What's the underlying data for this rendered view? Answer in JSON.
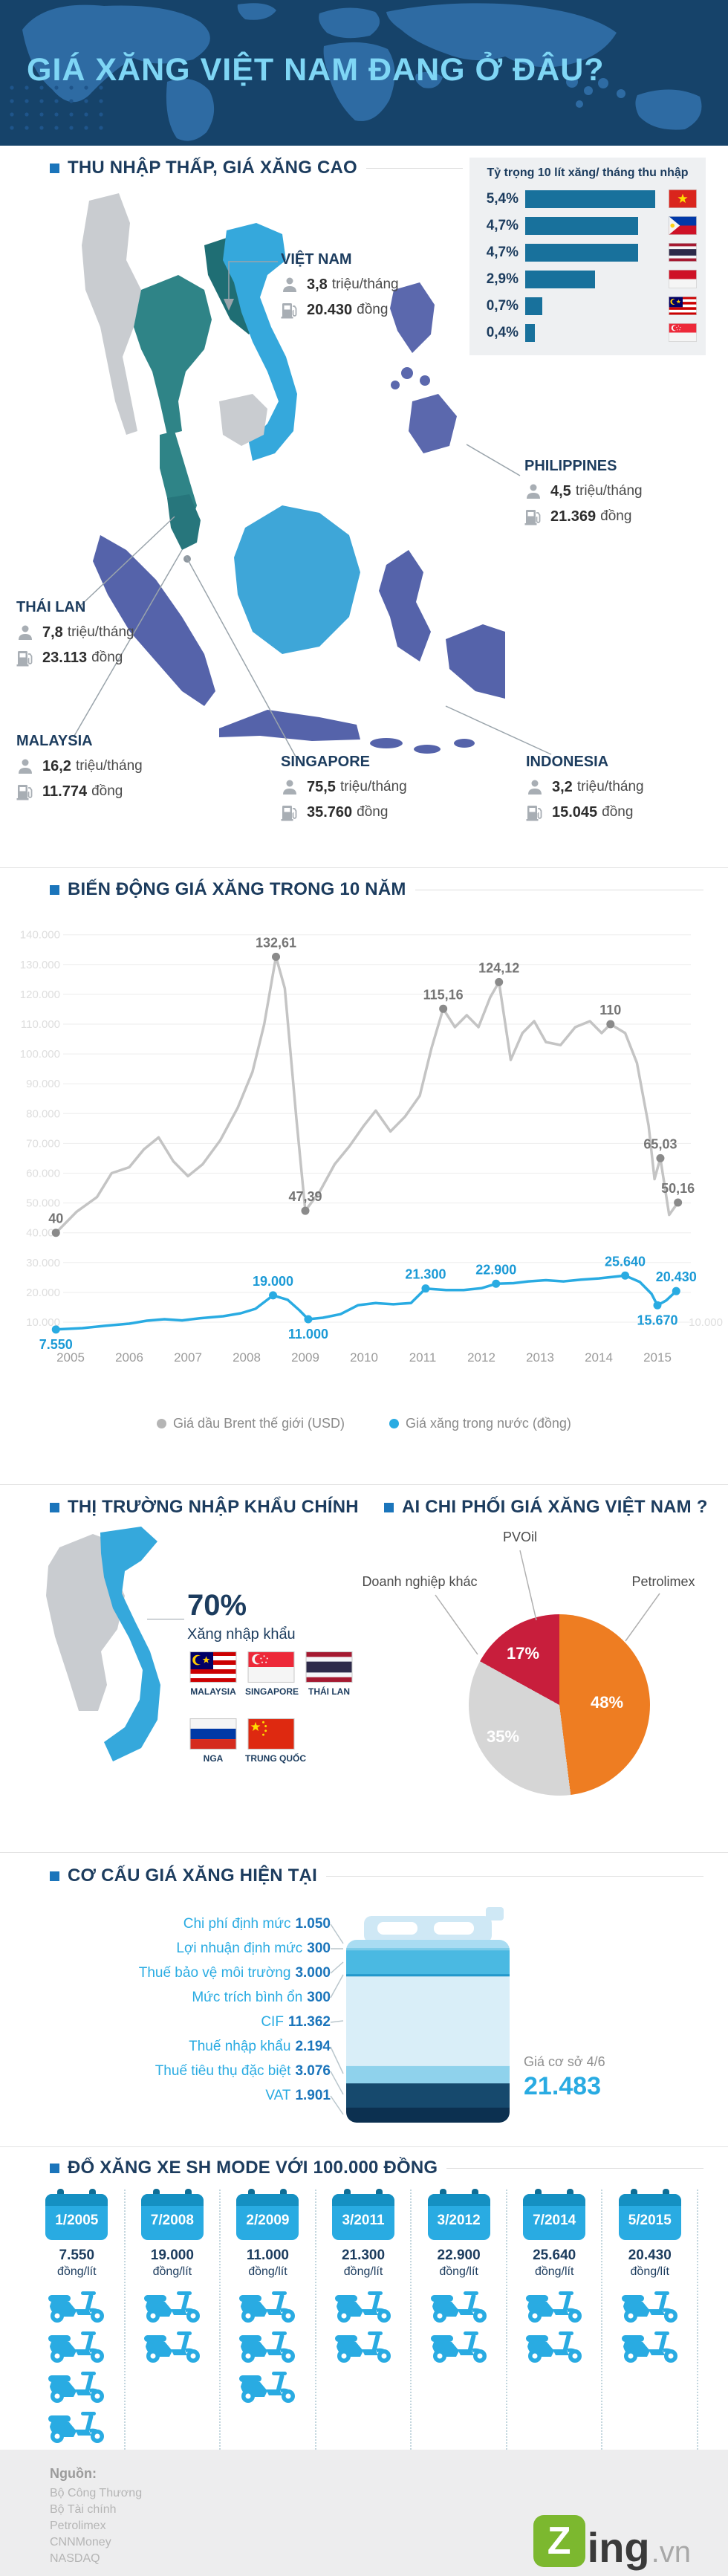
{
  "header": {
    "title": "GIÁ XĂNG VIỆT NAM ĐANG Ở ĐÂU?"
  },
  "sections": {
    "income": {
      "heading": "THU NHẬP THẤP, GIÁ XĂNG CAO",
      "countries": [
        {
          "name": "VIỆT NAM",
          "income_value": "3,8",
          "income_unit": "triệu/tháng",
          "price_value": "20.430",
          "price_unit": "đồng"
        },
        {
          "name": "PHILIPPINES",
          "income_value": "4,5",
          "income_unit": "triệu/tháng",
          "price_value": "21.369",
          "price_unit": "đồng"
        },
        {
          "name": "THÁI LAN",
          "income_value": "7,8",
          "income_unit": "triệu/tháng",
          "price_value": "23.113",
          "price_unit": "đồng"
        },
        {
          "name": "MALAYSIA",
          "income_value": "16,2",
          "income_unit": "triệu/tháng",
          "price_value": "11.774",
          "price_unit": "đồng"
        },
        {
          "name": "SINGAPORE",
          "income_value": "75,5",
          "income_unit": "triệu/tháng",
          "price_value": "35.760",
          "price_unit": "đồng"
        },
        {
          "name": "INDONESIA",
          "income_value": "3,2",
          "income_unit": "triệu/tháng",
          "price_value": "15.045",
          "price_unit": "đồng"
        }
      ]
    },
    "trend": {
      "heading": "BIẾN ĐỘNG GIÁ XĂNG TRONG 10 NĂM"
    },
    "imports": {
      "heading": "THỊ TRƯỜNG NHẬP KHẨU CHÍNH",
      "percent": "70%",
      "percent_label": "Xăng nhập khẩu",
      "flags": [
        {
          "name": "MALAYSIA",
          "flag": "malaysia"
        },
        {
          "name": "SINGAPORE",
          "flag": "singapore"
        },
        {
          "name": "THÁI LAN",
          "flag": "thailand"
        },
        {
          "name": "NGA",
          "flag": "russia"
        },
        {
          "name": "TRUNG QUỐC",
          "flag": "china"
        }
      ]
    },
    "control": {
      "heading": "AI CHI PHỐI GIÁ XĂNG VIỆT NAM ?"
    },
    "structure": {
      "heading": "CƠ CẤU GIÁ XĂNG HIỆN TẠI",
      "components": [
        {
          "label": "Chi phí định mức",
          "value": "1.050"
        },
        {
          "label": "Lợi nhuận định mức",
          "value": "300"
        },
        {
          "label": "Thuế bảo vệ môi trường",
          "value": "3.000"
        },
        {
          "label": "Mức trích bình ổn",
          "value": "300"
        },
        {
          "label": "CIF",
          "value": "11.362"
        },
        {
          "label": "Thuế nhập khẩu",
          "value": "2.194"
        },
        {
          "label": "Thuế tiêu thụ đặc biệt",
          "value": "3.076"
        },
        {
          "label": "VAT",
          "value": "1.901"
        }
      ],
      "band_colors": [
        "#a9dcf2",
        "#7bcbe8",
        "#4ab9e2",
        "#2398cb",
        "#d9eef8",
        "#8fd2ec",
        "#16496d",
        "#0c3050"
      ],
      "base_price_label": "Giá cơ sở 4/6",
      "base_price": "21.483"
    },
    "refuel": {
      "heading": "ĐỔ XĂNG XE SH MODE VỚI 100.000 ĐỒNG",
      "entries": [
        {
          "date": "1/2005",
          "price": "7.550",
          "unit": "đồng/lít",
          "scooters": 4
        },
        {
          "date": "7/2008",
          "price": "19.000",
          "unit": "đồng/lít",
          "scooters": 2
        },
        {
          "date": "2/2009",
          "price": "11.000",
          "unit": "đồng/lít",
          "scooters": 3
        },
        {
          "date": "3/2011",
          "price": "21.300",
          "unit": "đồng/lít",
          "scooters": 2
        },
        {
          "date": "3/2012",
          "price": "22.900",
          "unit": "đồng/lít",
          "scooters": 2
        },
        {
          "date": "7/2014",
          "price": "25.640",
          "unit": "đồng/lít",
          "scooters": 2
        },
        {
          "date": "5/2015",
          "price": "20.430",
          "unit": "đồng/lít",
          "scooters": 2
        }
      ]
    }
  },
  "chart_data": [
    {
      "type": "bar",
      "title": "Tỷ trọng 10 lít xăng/ tháng thu nhập",
      "orientation": "horizontal",
      "categories": [
        "Việt Nam",
        "Philippines",
        "Thái Lan",
        "Indonesia",
        "Malaysia",
        "Singapore"
      ],
      "values": [
        5.4,
        4.7,
        4.7,
        2.9,
        0.7,
        0.4
      ],
      "labels": [
        "5,4%",
        "4,7%",
        "4,7%",
        "2,9%",
        "0,7%",
        "0,4%"
      ],
      "flags": [
        "vietnam",
        "philippines",
        "thailand",
        "indonesia",
        "malaysia",
        "singapore"
      ],
      "bar_color": "#18719c",
      "xlim": [
        0,
        5.4
      ]
    },
    {
      "type": "line",
      "title": "BIẾN ĐỘNG GIÁ XĂNG TRONG 10 NĂM",
      "x_ticks": [
        2005,
        2006,
        2007,
        2008,
        2009,
        2010,
        2011,
        2012,
        2013,
        2014,
        2015
      ],
      "y_gridlines": [
        10000,
        20000,
        30000,
        40000,
        50000,
        60000,
        70000,
        80000,
        90000,
        100000,
        110000,
        120000,
        130000,
        140000
      ],
      "y_gridline_labels": [
        "10.000",
        "20.000",
        "30.000",
        "40.000",
        "50.000",
        "60.000",
        "70.000",
        "80.000",
        "90.000",
        "100.000",
        "110.000",
        "120.000",
        "130.000",
        "140.000"
      ],
      "ylim": [
        0,
        145000
      ],
      "grid": true,
      "legend_position": "bottom",
      "series": [
        {
          "name": "Giá dầu Brent thế giới (USD)",
          "color": "#c4c4c4",
          "dot_color": "#8a8a8a",
          "label_color": "#757575",
          "unit": "USD",
          "plot_scale": 1000,
          "points": [
            [
              2004.75,
              40
            ],
            [
              2005.1,
              47
            ],
            [
              2005.45,
              52
            ],
            [
              2005.7,
              60
            ],
            [
              2006,
              62
            ],
            [
              2006.25,
              68
            ],
            [
              2006.5,
              72
            ],
            [
              2006.75,
              64
            ],
            [
              2007,
              59
            ],
            [
              2007.25,
              63
            ],
            [
              2007.55,
              71
            ],
            [
              2007.85,
              82
            ],
            [
              2008.1,
              94
            ],
            [
              2008.3,
              110
            ],
            [
              2008.5,
              132.61
            ],
            [
              2008.65,
              122
            ],
            [
              2008.85,
              78
            ],
            [
              2009,
              47.39
            ],
            [
              2009.25,
              54
            ],
            [
              2009.5,
              63
            ],
            [
              2009.75,
              69
            ],
            [
              2010,
              76
            ],
            [
              2010.2,
              81
            ],
            [
              2010.45,
              74
            ],
            [
              2010.7,
              79
            ],
            [
              2010.95,
              86
            ],
            [
              2011.15,
              102
            ],
            [
              2011.35,
              115.16
            ],
            [
              2011.55,
              109
            ],
            [
              2011.75,
              113
            ],
            [
              2011.95,
              109
            ],
            [
              2012.15,
              119
            ],
            [
              2012.3,
              124.12
            ],
            [
              2012.5,
              98
            ],
            [
              2012.7,
              107
            ],
            [
              2012.9,
              111
            ],
            [
              2013.1,
              104
            ],
            [
              2013.35,
              103
            ],
            [
              2013.6,
              109
            ],
            [
              2013.85,
              111
            ],
            [
              2014.05,
              107
            ],
            [
              2014.2,
              110
            ],
            [
              2014.45,
              107
            ],
            [
              2014.65,
              97
            ],
            [
              2014.85,
              76
            ],
            [
              2014.95,
              58
            ],
            [
              2015.05,
              65.03
            ],
            [
              2015.2,
              46
            ],
            [
              2015.35,
              50.16
            ]
          ],
          "annotations": [
            {
              "x": 2004.75,
              "y": 40,
              "label": "40",
              "pos": "above"
            },
            {
              "x": 2008.5,
              "y": 132.61,
              "label": "132,61",
              "pos": "above"
            },
            {
              "x": 2009,
              "y": 47.39,
              "label": "47,39",
              "pos": "above"
            },
            {
              "x": 2011.35,
              "y": 115.16,
              "label": "115,16",
              "pos": "above"
            },
            {
              "x": 2012.3,
              "y": 124.12,
              "label": "124,12",
              "pos": "above"
            },
            {
              "x": 2014.2,
              "y": 110,
              "label": "110",
              "pos": "above"
            },
            {
              "x": 2015.05,
              "y": 65.03,
              "label": "65,03",
              "pos": "above"
            },
            {
              "x": 2015.35,
              "y": 50.16,
              "label": "50,16",
              "pos": "above"
            }
          ]
        },
        {
          "name": "Giá xăng trong nước (đồng)",
          "color": "#29abe2",
          "dot_color": "#29abe2",
          "label_color": "#1b9ad6",
          "unit": "đồng",
          "plot_scale": 1,
          "points": [
            [
              2004.75,
              7550
            ],
            [
              2005.2,
              8000
            ],
            [
              2005.6,
              8800
            ],
            [
              2006,
              9500
            ],
            [
              2006.3,
              10500
            ],
            [
              2006.6,
              11000
            ],
            [
              2006.9,
              10600
            ],
            [
              2007.2,
              11300
            ],
            [
              2007.6,
              12000
            ],
            [
              2007.9,
              13000
            ],
            [
              2008.15,
              14500
            ],
            [
              2008.45,
              19000
            ],
            [
              2008.7,
              17500
            ],
            [
              2008.9,
              14000
            ],
            [
              2009.05,
              11000
            ],
            [
              2009.3,
              11500
            ],
            [
              2009.6,
              12700
            ],
            [
              2009.9,
              15700
            ],
            [
              2010.2,
              16400
            ],
            [
              2010.5,
              16000
            ],
            [
              2010.8,
              16400
            ],
            [
              2011.05,
              21300
            ],
            [
              2011.4,
              20800
            ],
            [
              2011.7,
              20800
            ],
            [
              2012,
              21400
            ],
            [
              2012.25,
              22900
            ],
            [
              2012.55,
              23100
            ],
            [
              2012.8,
              23700
            ],
            [
              2013.1,
              24100
            ],
            [
              2013.4,
              23700
            ],
            [
              2013.7,
              24300
            ],
            [
              2014,
              24700
            ],
            [
              2014.45,
              25640
            ],
            [
              2014.7,
              23500
            ],
            [
              2014.9,
              19500
            ],
            [
              2015,
              15670
            ],
            [
              2015.15,
              17300
            ],
            [
              2015.32,
              20430
            ]
          ],
          "annotations": [
            {
              "x": 2004.75,
              "y": 7550,
              "label": "7.550",
              "pos": "below"
            },
            {
              "x": 2008.45,
              "y": 19000,
              "label": "19.000",
              "pos": "above"
            },
            {
              "x": 2009.05,
              "y": 11000,
              "label": "11.000",
              "pos": "below"
            },
            {
              "x": 2011.05,
              "y": 21300,
              "label": "21.300",
              "pos": "above"
            },
            {
              "x": 2012.25,
              "y": 22900,
              "label": "22.900",
              "pos": "above"
            },
            {
              "x": 2014.45,
              "y": 25640,
              "label": "25.640",
              "pos": "above"
            },
            {
              "x": 2015,
              "y": 15670,
              "label": "15.670",
              "pos": "below"
            },
            {
              "x": 2015.32,
              "y": 20430,
              "label": "20.430",
              "pos": "above"
            }
          ]
        }
      ]
    },
    {
      "type": "pie",
      "title": "AI CHI PHỐI GIÁ XĂNG VIỆT NAM ?",
      "labels": [
        "Petrolimex",
        "Doanh nghiệp khác",
        "PVOil"
      ],
      "values": [
        48,
        35,
        17
      ],
      "value_labels": [
        "48%",
        "35%",
        "17%"
      ],
      "colors": [
        "#ee7d22",
        "#d6d6d6",
        "#c81e3c"
      ]
    }
  ],
  "footer": {
    "sources_label": "Nguồn:",
    "sources": [
      "Bộ Công Thương",
      "Bộ Tài chính",
      "Petrolimex",
      "CNNMoney",
      "NASDAQ"
    ],
    "logo": {
      "z": "Z",
      "ing": "ing",
      "vn": ".vn"
    }
  },
  "colors": {
    "accent_blue": "#29abe2",
    "navy": "#1c3c5e",
    "bar_blue": "#18719c",
    "header_bg": "#16436a",
    "header_title": "#7fd6f5",
    "footer_bg": "#ededee",
    "zing_green": "#7cb82f"
  }
}
